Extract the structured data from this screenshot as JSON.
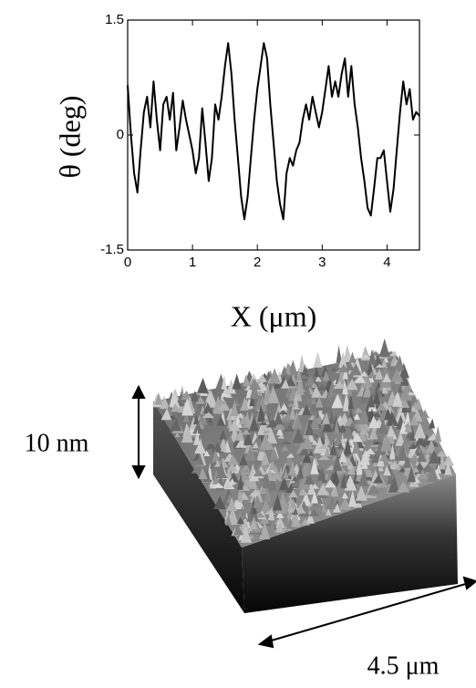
{
  "chart_data": {
    "type": "line",
    "x_label": "X (μm)",
    "y_label": "θ (deg)",
    "x": [
      0,
      0.05,
      0.1,
      0.15,
      0.2,
      0.25,
      0.3,
      0.35,
      0.4,
      0.45,
      0.5,
      0.55,
      0.6,
      0.65,
      0.7,
      0.75,
      0.8,
      0.85,
      0.9,
      0.95,
      1,
      1.05,
      1.1,
      1.15,
      1.2,
      1.25,
      1.3,
      1.35,
      1.4,
      1.45,
      1.5,
      1.55,
      1.6,
      1.65,
      1.7,
      1.75,
      1.8,
      1.85,
      1.9,
      1.95,
      2,
      2.05,
      2.1,
      2.15,
      2.2,
      2.25,
      2.3,
      2.35,
      2.4,
      2.45,
      2.5,
      2.55,
      2.6,
      2.65,
      2.7,
      2.75,
      2.8,
      2.85,
      2.9,
      2.95,
      3,
      3.05,
      3.1,
      3.15,
      3.2,
      3.25,
      3.3,
      3.35,
      3.4,
      3.45,
      3.5,
      3.55,
      3.6,
      3.65,
      3.7,
      3.75,
      3.8,
      3.85,
      3.9,
      3.95,
      4,
      4.05,
      4.1,
      4.15,
      4.2,
      4.25,
      4.3,
      4.35,
      4.4,
      4.45,
      4.5
    ],
    "series": [
      {
        "color": "#000000",
        "values": [
          0.65,
          0,
          -0.5,
          -0.75,
          -0.2,
          0.3,
          0.5,
          0.1,
          0.7,
          0.2,
          -0.2,
          0.4,
          0.5,
          0.2,
          0.55,
          -0.2,
          0.1,
          0.45,
          0.2,
          0,
          -0.2,
          -0.5,
          -0.3,
          0.35,
          -0.1,
          -0.6,
          -0.3,
          0.4,
          0.2,
          0.5,
          0.9,
          1.2,
          0.8,
          0.2,
          -0.3,
          -0.8,
          -1.1,
          -0.8,
          -0.3,
          0.2,
          0.6,
          0.9,
          1.2,
          1.0,
          0.4,
          -0.1,
          -0.6,
          -0.9,
          -1.1,
          -0.5,
          -0.3,
          -0.4,
          -0.2,
          -0.1,
          0.2,
          0.4,
          0.2,
          0.5,
          0.3,
          0.1,
          0.3,
          0.6,
          0.9,
          0.5,
          0.7,
          0.5,
          0.8,
          1.0,
          0.5,
          0.9,
          0.4,
          0.1,
          -0.3,
          -0.6,
          -0.95,
          -1.05,
          -0.7,
          -0.3,
          -0.3,
          -0.2,
          -0.6,
          -1.0,
          -0.7,
          -0.2,
          0.3,
          0.7,
          0.4,
          0.6,
          0.2,
          0.3,
          0.25
        ]
      }
    ],
    "xlim": [
      0,
      4.5
    ],
    "xticks": [
      0,
      1,
      2,
      3,
      4
    ],
    "ylim": [
      -1.5,
      1.5
    ],
    "yticks": [
      -1.5,
      0,
      1.5
    ]
  },
  "surface": {
    "height_label": "10 nm",
    "width_label": "4.5 μm"
  }
}
